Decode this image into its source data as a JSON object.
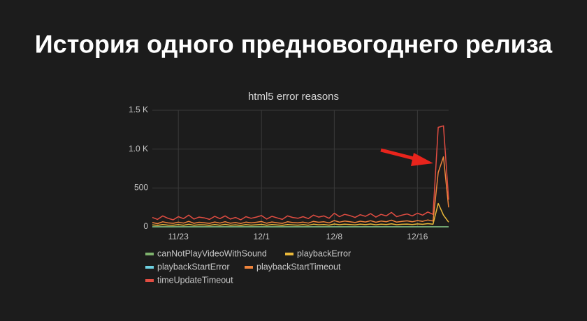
{
  "heading": "История одного предновогоднего релиза",
  "chart_data": {
    "type": "line",
    "title": "html5 error reasons",
    "categories": [
      null,
      null,
      null,
      null,
      null,
      "11/23",
      null,
      null,
      null,
      null,
      null,
      null,
      null,
      null,
      null,
      null,
      null,
      null,
      null,
      null,
      null,
      "12/1",
      null,
      null,
      null,
      null,
      null,
      null,
      null,
      null,
      null,
      null,
      null,
      null,
      null,
      "12/8",
      null,
      null,
      null,
      null,
      null,
      null,
      null,
      null,
      null,
      null,
      null,
      null,
      null,
      null,
      null,
      "12/16",
      null,
      null,
      null,
      null,
      null,
      null
    ],
    "ylim": [
      0,
      1500
    ],
    "yticks": [
      0,
      500,
      {
        "value": 1000,
        "label": "1.0 K"
      },
      {
        "value": 1500,
        "label": "1.5 K"
      }
    ],
    "grid": true,
    "series": [
      {
        "name": "canNotPlayVideoWithSound",
        "color": "#7eb26d",
        "values": [
          0,
          0,
          0,
          0,
          0,
          0,
          0,
          0,
          0,
          0,
          0,
          0,
          0,
          0,
          0,
          0,
          0,
          0,
          0,
          0,
          0,
          0,
          0,
          0,
          0,
          0,
          0,
          0,
          0,
          0,
          0,
          0,
          0,
          0,
          0,
          0,
          0,
          0,
          0,
          0,
          0,
          0,
          0,
          0,
          0,
          0,
          0,
          0,
          0,
          0,
          0,
          0,
          0,
          0,
          0,
          0,
          0,
          0
        ]
      },
      {
        "name": "playbackError",
        "color": "#eab839",
        "values": [
          25,
          18,
          30,
          22,
          20,
          28,
          21,
          32,
          20,
          26,
          24,
          19,
          29,
          21,
          31,
          20,
          25,
          18,
          28,
          22,
          26,
          31,
          20,
          29,
          23,
          19,
          30,
          25,
          22,
          28,
          21,
          33,
          26,
          30,
          22,
          36,
          27,
          34,
          30,
          25,
          33,
          28,
          36,
          26,
          34,
          30,
          39,
          27,
          32,
          35,
          30,
          37,
          32,
          40,
          34,
          300,
          150,
          60
        ]
      },
      {
        "name": "playbackStartError",
        "color": "#6ed0e0",
        "values": [
          0,
          0,
          0,
          0,
          0,
          0,
          0,
          0,
          0,
          0,
          0,
          0,
          0,
          0,
          0,
          0,
          0,
          0,
          0,
          0,
          0,
          0,
          0,
          0,
          0,
          0,
          0,
          0,
          0,
          0,
          0,
          0,
          0,
          0,
          0,
          0,
          0,
          0,
          0,
          0,
          0,
          0,
          0,
          0,
          0,
          0,
          0,
          0,
          0,
          0,
          0,
          0,
          0,
          0,
          0,
          0,
          0,
          0
        ]
      },
      {
        "name": "playbackStartTimeout",
        "color": "#ef843c",
        "values": [
          55,
          40,
          65,
          50,
          45,
          60,
          48,
          70,
          45,
          58,
          52,
          44,
          62,
          48,
          66,
          46,
          55,
          42,
          60,
          50,
          58,
          68,
          46,
          62,
          52,
          44,
          65,
          55,
          50,
          60,
          48,
          70,
          58,
          65,
          50,
          80,
          60,
          74,
          66,
          55,
          72,
          62,
          78,
          58,
          74,
          65,
          85,
          60,
          70,
          76,
          65,
          80,
          70,
          88,
          74,
          700,
          900,
          250
        ]
      },
      {
        "name": "timeUpdateTimeout",
        "color": "#e24d42",
        "values": [
          120,
          95,
          140,
          110,
          90,
          130,
          105,
          150,
          100,
          125,
          115,
          95,
          135,
          105,
          140,
          100,
          120,
          90,
          130,
          110,
          125,
          145,
          100,
          135,
          115,
          95,
          140,
          120,
          110,
          130,
          105,
          150,
          125,
          140,
          110,
          175,
          130,
          160,
          145,
          120,
          155,
          135,
          170,
          125,
          160,
          140,
          185,
          130,
          150,
          165,
          140,
          175,
          150,
          190,
          160,
          1280,
          1300,
          350
        ]
      }
    ]
  }
}
